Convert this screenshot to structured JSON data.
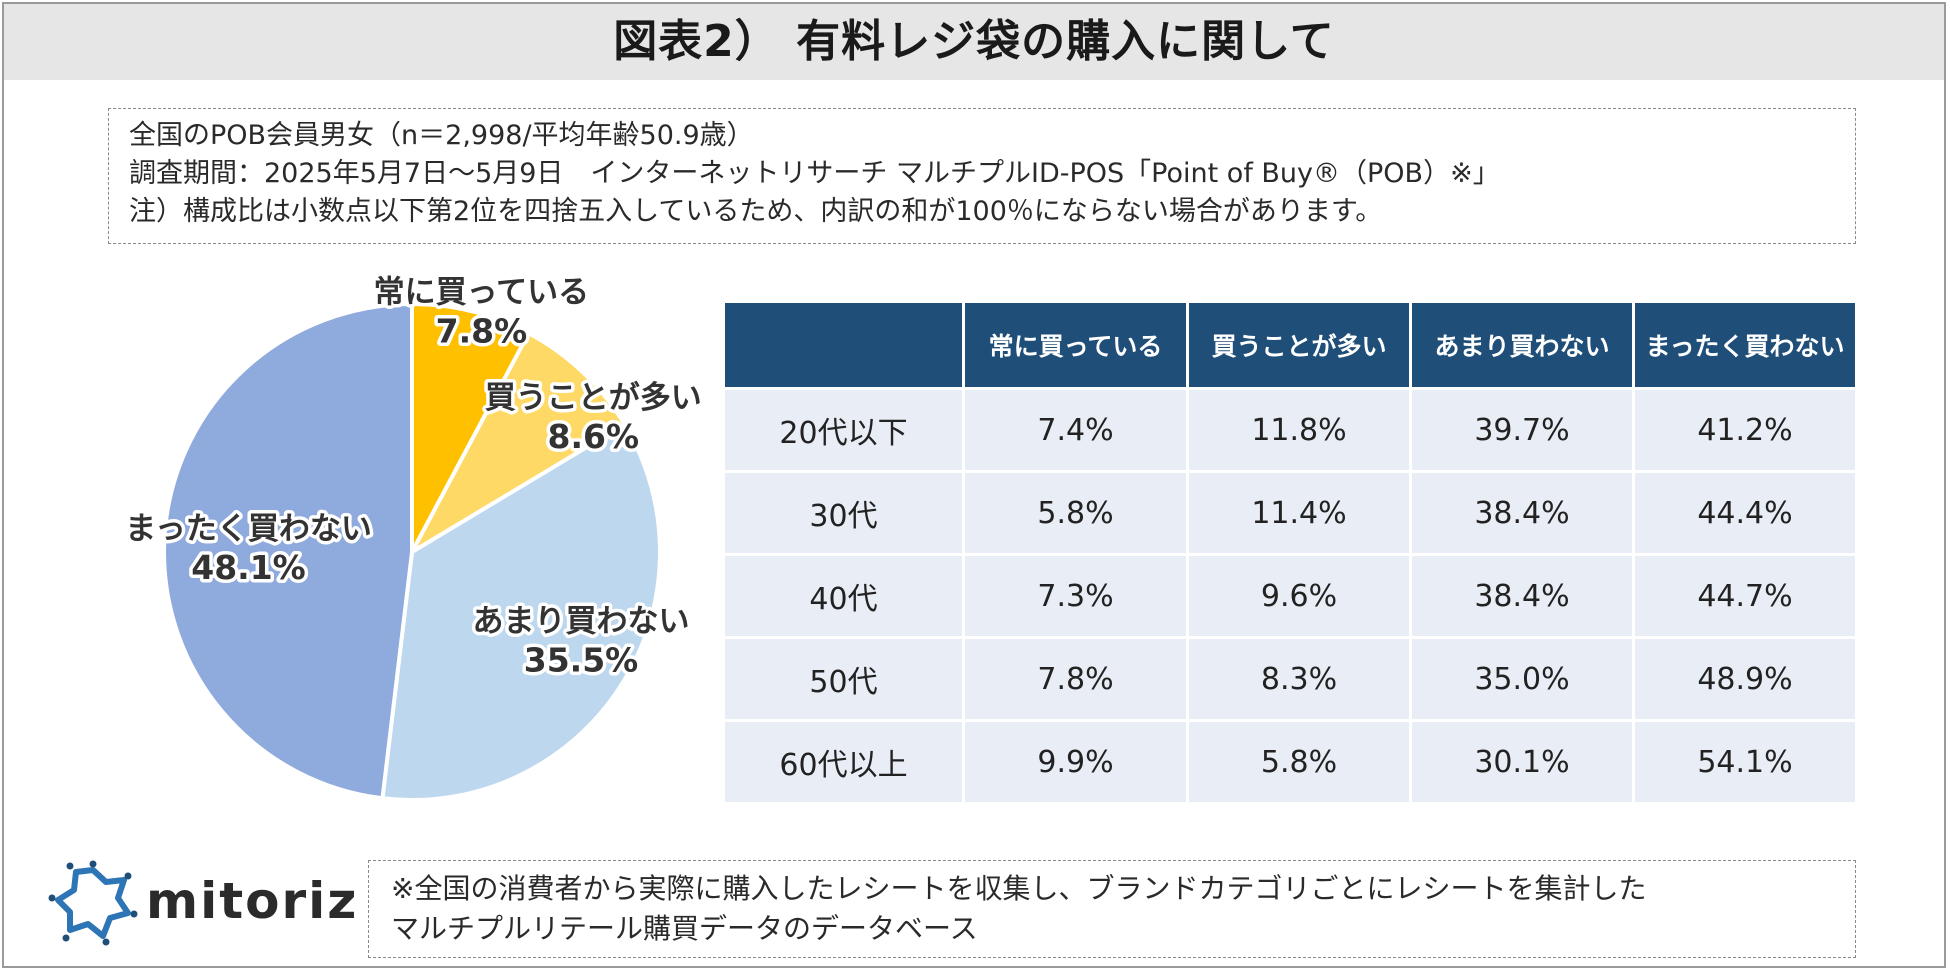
{
  "title": "図表2） 有料レジ袋の購入に関して",
  "notes": [
    "全国のPOB会員男女（n＝2,998/平均年齢50.9歳）",
    "調査期間：2025年5月7日～5月9日　インターネットリサーチ マルチプルID-POS「Point of Buy®（POB）※」",
    "注）構成比は小数点以下第2位を四捨五入しているため、内訳の和が100％にならない場合があります。"
  ],
  "footnote": [
    "※全国の消費者から実際に購入したレシートを収集し、ブランドカテゴリごとにレシートを集計した",
    "マルチプルリテール購買データのデータベース"
  ],
  "logo": {
    "text": "mitoriz"
  },
  "colors": {
    "slice_always": "#ffc000",
    "slice_often": "#ffd966",
    "slice_rarely": "#bdd7ee",
    "slice_never": "#8faadc",
    "header_bg": "#1f4e79",
    "cell_bg": "#e9edf5",
    "logo": "#2e75b6"
  },
  "chart_data": [
    {
      "type": "pie",
      "categories": [
        "常に買っている",
        "買うことが多い",
        "あまり買わない",
        "まったく買わない"
      ],
      "values": [
        7.8,
        8.6,
        35.5,
        48.1
      ],
      "value_labels": [
        "7.8%",
        "8.6%",
        "35.5%",
        "48.1%"
      ]
    },
    {
      "type": "table",
      "columns": [
        "",
        "常に買っている",
        "買うことが多い",
        "あまり買わない",
        "まったく買わない"
      ],
      "rows": [
        [
          "20代以下",
          "7.4%",
          "11.8%",
          "39.7%",
          "41.2%"
        ],
        [
          "30代",
          "5.8%",
          "11.4%",
          "38.4%",
          "44.4%"
        ],
        [
          "40代",
          "7.3%",
          "9.6%",
          "38.4%",
          "44.7%"
        ],
        [
          "50代",
          "7.8%",
          "8.3%",
          "35.0%",
          "48.9%"
        ],
        [
          "60代以上",
          "9.9%",
          "5.8%",
          "30.1%",
          "54.1%"
        ]
      ]
    }
  ]
}
